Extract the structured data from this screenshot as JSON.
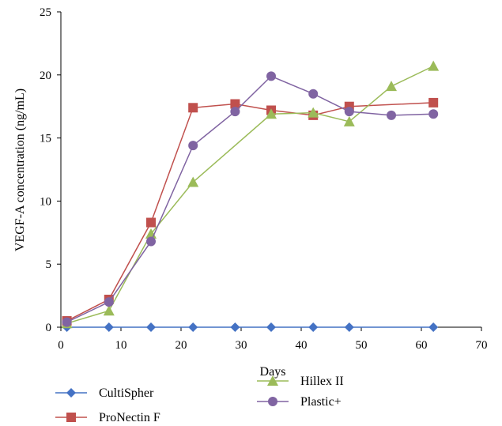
{
  "chart_data": {
    "type": "line",
    "xlabel": "Days",
    "ylabel": "VEGF-A concentration (ng/mL)",
    "xlim": [
      0,
      70
    ],
    "ylim": [
      0,
      25
    ],
    "xticks": [
      "0",
      "10",
      "20",
      "30",
      "40",
      "50",
      "60",
      "70"
    ],
    "yticks": [
      "0",
      "5",
      "10",
      "15",
      "20",
      "25"
    ],
    "grid": false,
    "legend_position": "bottom",
    "series": [
      {
        "name": "CultiSpher",
        "color": "#4472C4",
        "marker": "diamond",
        "x": [
          1,
          8,
          15,
          22,
          29,
          35,
          42,
          48,
          62
        ],
        "y": [
          0,
          0,
          0,
          0,
          0,
          0,
          0,
          0,
          0
        ]
      },
      {
        "name": "ProNectin F",
        "color": "#C0504D",
        "marker": "square",
        "x": [
          1,
          8,
          15,
          22,
          29,
          35,
          42,
          48,
          62
        ],
        "y": [
          0.5,
          2.2,
          8.3,
          17.4,
          17.7,
          17.2,
          16.8,
          17.5,
          17.8
        ]
      },
      {
        "name": "Hillex II",
        "color": "#9BBB59",
        "marker": "triangle",
        "x": [
          1,
          8,
          15,
          22,
          35,
          42,
          48,
          55,
          62
        ],
        "y": [
          0.3,
          1.3,
          7.4,
          11.5,
          16.9,
          17.0,
          16.3,
          19.1,
          20.7
        ]
      },
      {
        "name": "Plastic+",
        "color": "#8064A2",
        "marker": "circle",
        "x": [
          1,
          8,
          15,
          22,
          29,
          35,
          42,
          48,
          55,
          62
        ],
        "y": [
          0.4,
          2.0,
          6.8,
          14.4,
          17.1,
          19.9,
          18.5,
          17.1,
          16.8,
          16.9
        ]
      }
    ]
  }
}
